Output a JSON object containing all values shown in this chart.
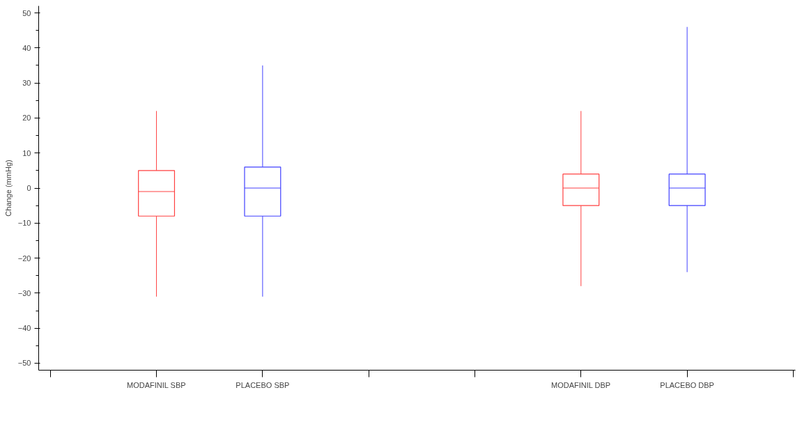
{
  "chart_data": {
    "type": "box",
    "ylabel": "Change (mmHg)",
    "categories": [
      null,
      "MODAFINIL SBP",
      "PLACEBO SBP",
      null,
      null,
      "MODAFINIL DBP",
      "PLACEBO DBP",
      null
    ],
    "series": [
      {
        "color": "#ff4040",
        "boxes": [
          null,
          {
            "low": -31,
            "q1": -8,
            "median": -1,
            "q3": 5,
            "high": 22
          },
          null,
          null,
          null,
          null,
          null,
          null
        ]
      },
      {
        "color": "#4040ff",
        "boxes": [
          null,
          null,
          {
            "low": -31,
            "q1": -8,
            "median": 0,
            "q3": 6,
            "high": 35
          },
          null,
          null,
          null,
          null,
          null
        ]
      },
      {
        "color": "#ff4040",
        "boxes": [
          null,
          null,
          null,
          null,
          null,
          {
            "low": -28,
            "q1": -5,
            "median": 0,
            "q3": 4,
            "high": 22
          },
          null,
          null
        ]
      },
      {
        "color": "#4040ff",
        "boxes": [
          null,
          null,
          null,
          null,
          null,
          null,
          {
            "low": -24,
            "q1": -5,
            "median": 0,
            "q3": 4,
            "high": 46
          },
          null
        ]
      }
    ],
    "ylim": [
      -52,
      52
    ],
    "yticks": [
      -50,
      -40,
      -30,
      -20,
      -10,
      0,
      10,
      20,
      30,
      40,
      50
    ],
    "grid": false
  }
}
